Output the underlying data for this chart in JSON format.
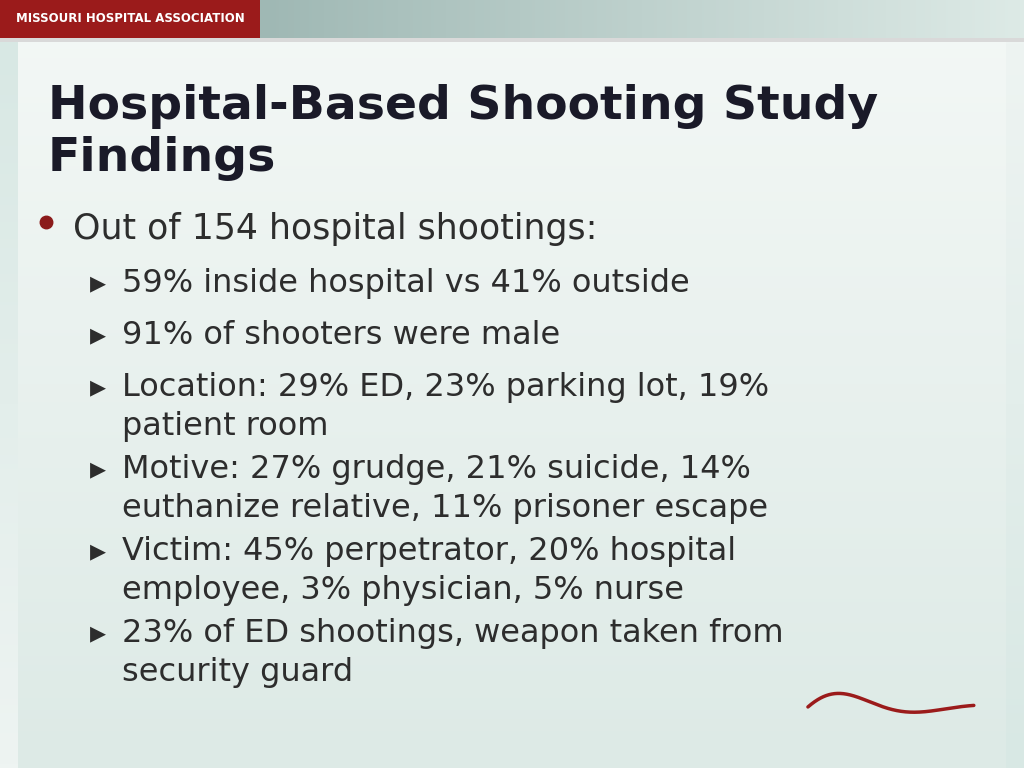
{
  "title_line1": "Hospital-Based Shooting Study",
  "title_line2": "Findings",
  "header_text": "MISSOURI HOSPITAL ASSOCIATION",
  "header_bg": "#9B1B1B",
  "header_gradient_end": "#b0c8c4",
  "background_top": "#e8f0ee",
  "background_bottom": "#f5f8f7",
  "left_bar_color": "#c8d8d4",
  "right_bar_color": "#c8d8d4",
  "title_color": "#1a1a28",
  "text_color": "#2d2d2d",
  "bullet_color": "#8B1A1A",
  "arrow_color": "#2d2d2d",
  "main_bullet": "Out of 154 hospital shootings:",
  "sub_bullets": [
    "59% inside hospital vs 41% outside",
    "91% of shooters were male",
    "Location: 29% ED, 23% parking lot, 19%\npatient room",
    "Motive: 27% grudge, 21% suicide, 14%\neuthanize relative, 11% prisoner escape",
    "Victim: 45% perpetrator, 20% hospital\nemployee, 3% physician, 5% nurse",
    "23% of ED shootings, weapon taken from\nsecurity guard"
  ],
  "title_fontsize": 34,
  "main_bullet_fontsize": 25,
  "sub_bullet_fontsize": 23,
  "header_fontsize": 8.5,
  "squiggle_color": "#9B1B1B",
  "fig_width": 10.24,
  "fig_height": 7.68,
  "dpi": 100
}
